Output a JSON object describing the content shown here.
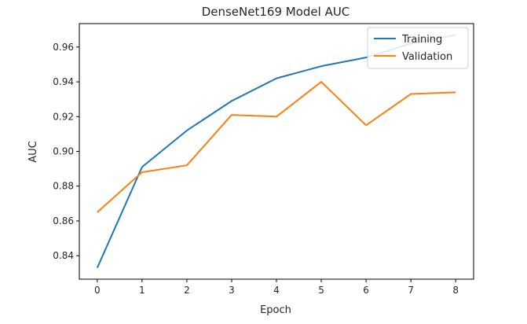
{
  "chart_data": {
    "type": "line",
    "title": "DenseNet169 Model AUC",
    "xlabel": "Epoch",
    "ylabel": "AUC",
    "x": [
      0,
      1,
      2,
      3,
      4,
      5,
      6,
      7,
      8
    ],
    "xlim": [
      -0.4,
      8.4
    ],
    "ylim": [
      0.8265,
      0.9735
    ],
    "xticks": [
      "0",
      "1",
      "2",
      "3",
      "4",
      "5",
      "6",
      "7",
      "8"
    ],
    "yticks": [
      "0.84",
      "0.86",
      "0.88",
      "0.90",
      "0.92",
      "0.94",
      "0.96"
    ],
    "grid": false,
    "legend_position": "top-right",
    "series": [
      {
        "name": "Training",
        "color": "#1f77b4",
        "values": [
          0.833,
          0.891,
          0.912,
          0.929,
          0.942,
          0.949,
          0.954,
          0.962,
          0.967
        ]
      },
      {
        "name": "Validation",
        "color": "#ff7f0e",
        "values": [
          0.865,
          0.888,
          0.892,
          0.921,
          0.92,
          0.94,
          0.915,
          0.933,
          0.934
        ]
      }
    ]
  }
}
